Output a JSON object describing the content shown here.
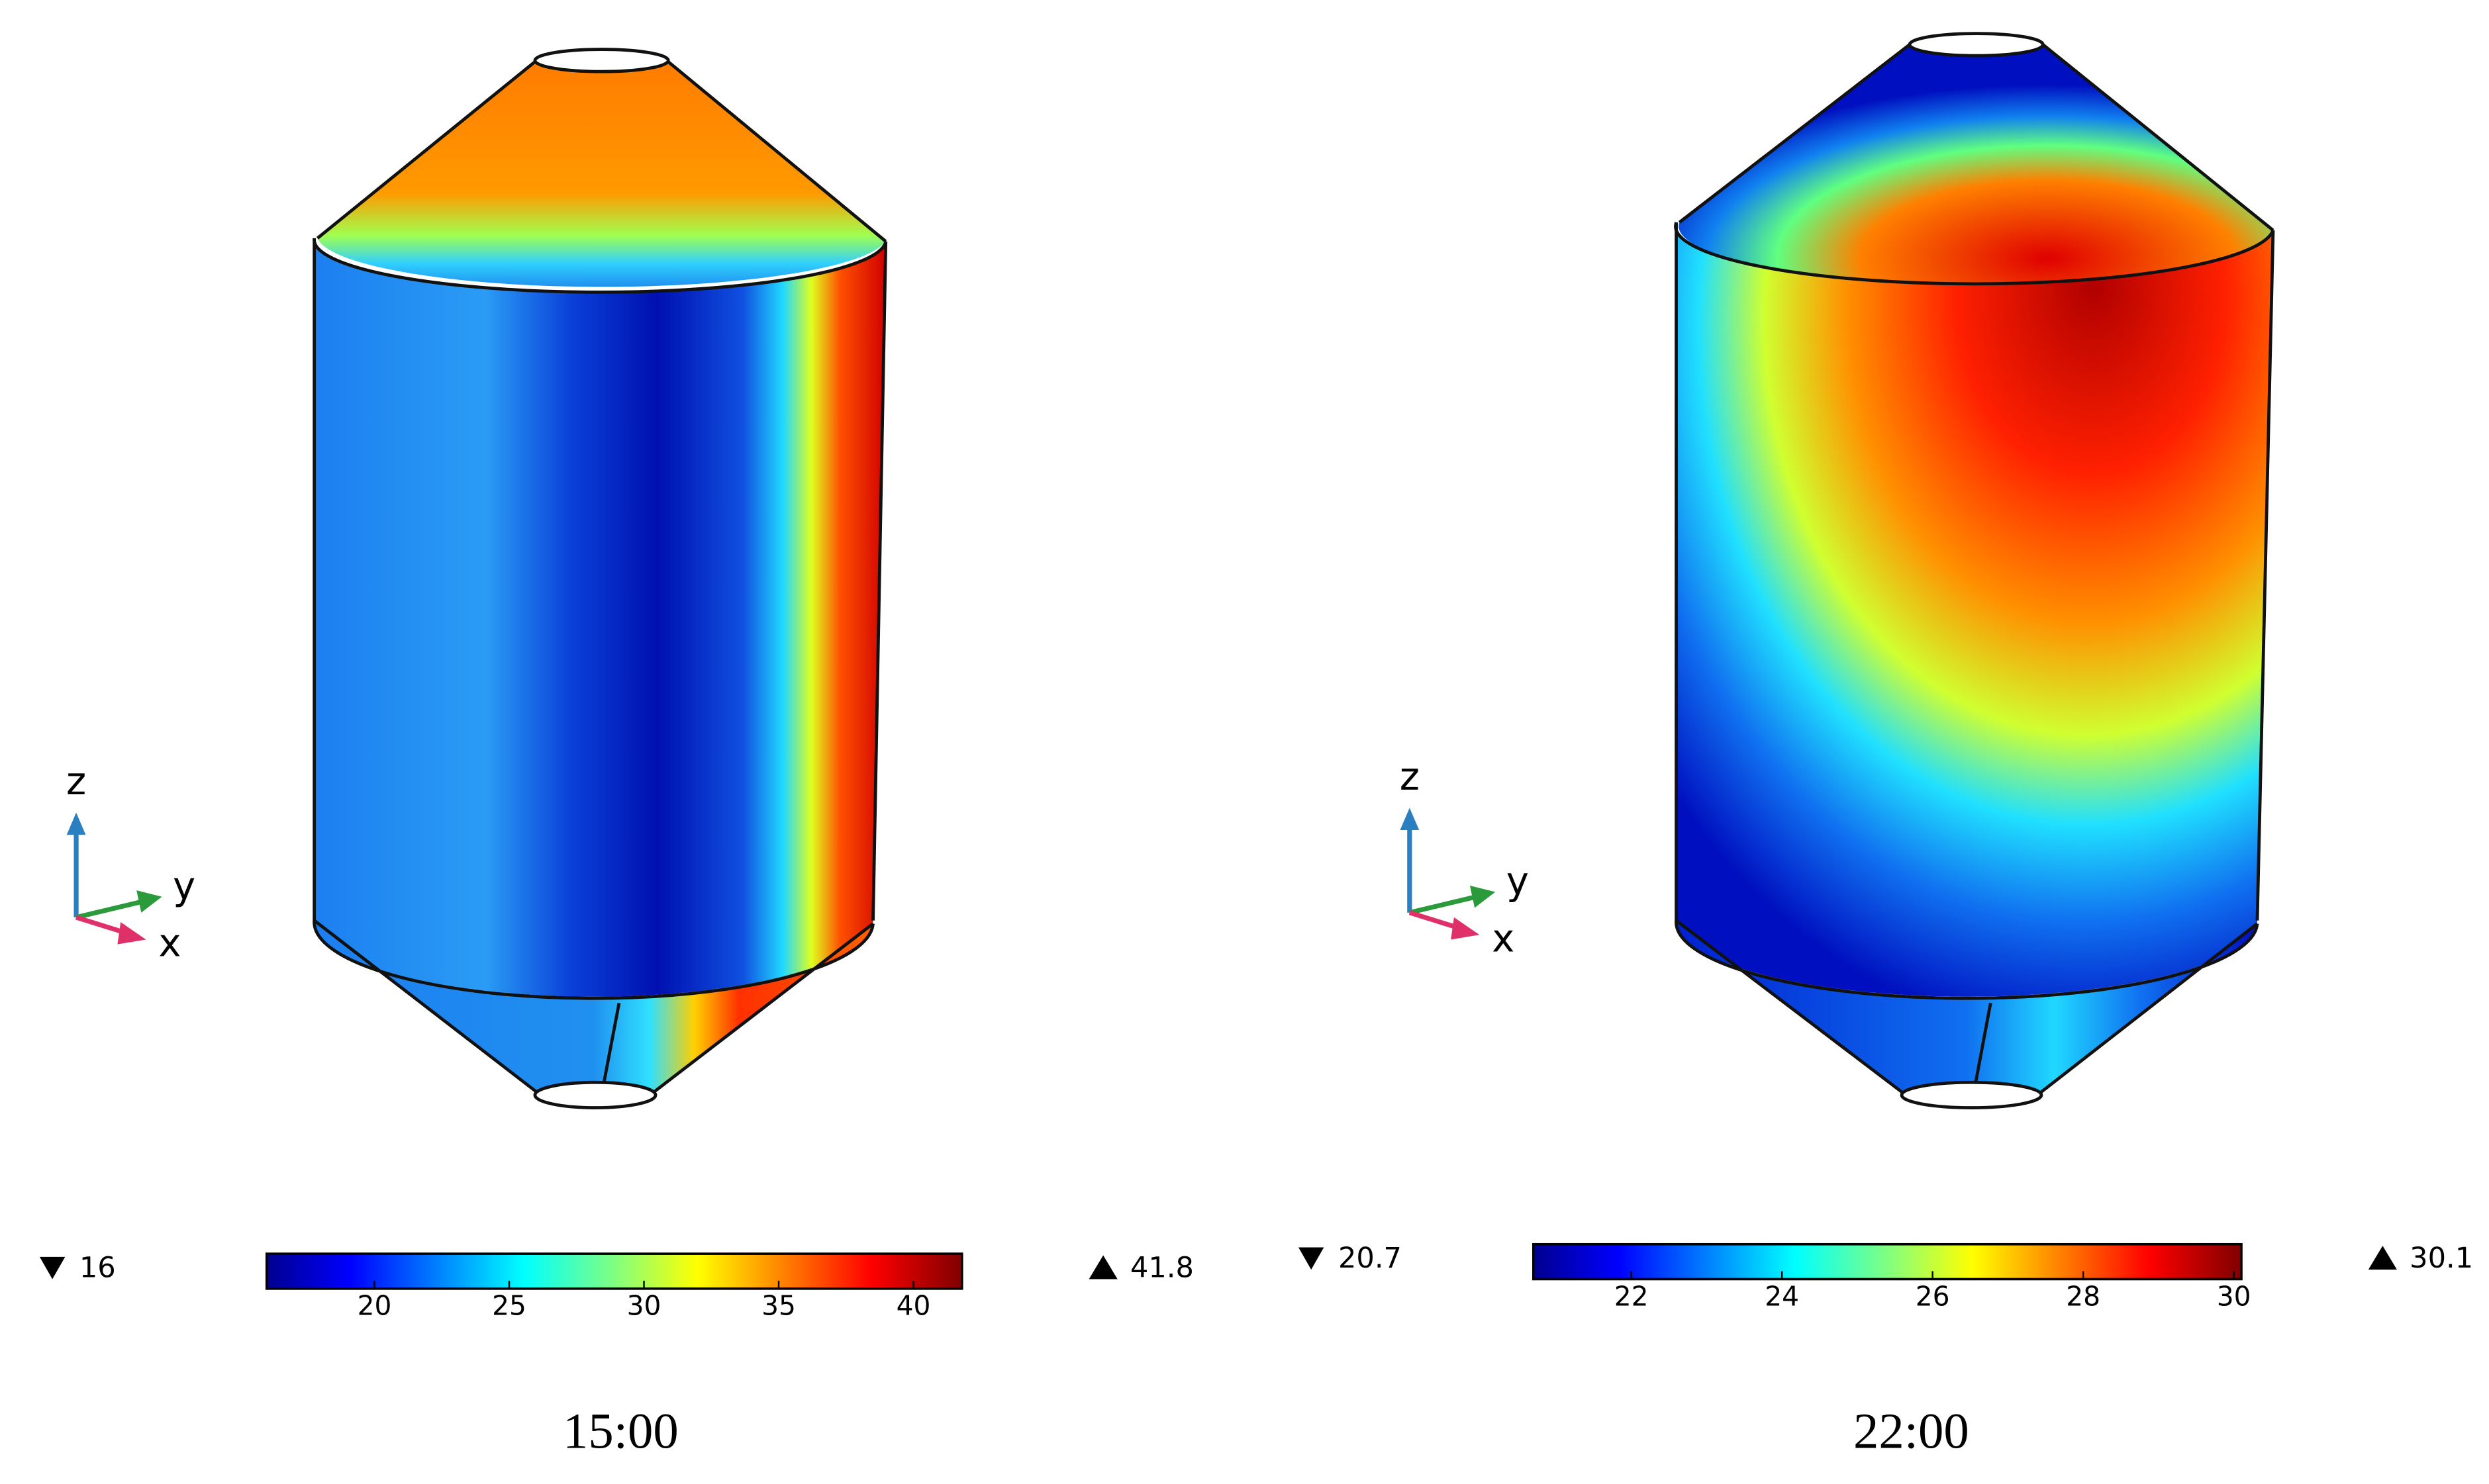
{
  "panels": [
    {
      "caption": "15:00",
      "min": 16,
      "max": 41.8,
      "ticks": [
        20,
        25,
        30,
        35,
        40
      ],
      "axes": {
        "z": "z",
        "y": "y",
        "x": "x"
      }
    },
    {
      "caption": "22:00",
      "min": 20.7,
      "max": 30.1,
      "ticks": [
        22,
        24,
        26,
        28,
        30
      ],
      "axes": {
        "z": "z",
        "y": "y",
        "x": "x"
      }
    }
  ]
}
